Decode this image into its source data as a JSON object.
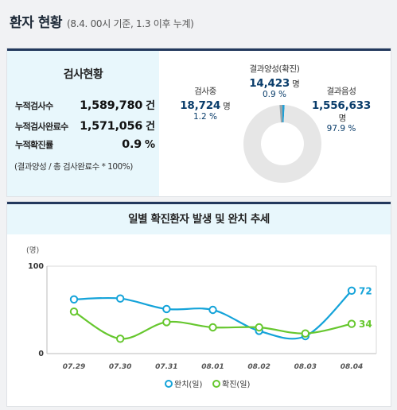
{
  "header": {
    "title": "환자 현황",
    "subtitle": "(8.4. 00시 기준, 1.3 이후 누계)"
  },
  "stats": {
    "title": "검사현황",
    "rows": [
      {
        "label": "누적검사수",
        "value": "1,589,780",
        "unit": "건"
      },
      {
        "label": "누적검사완료수",
        "value": "1,571,056",
        "unit": "건"
      },
      {
        "label": "누적확진률",
        "value": "0.9",
        "unit": "%"
      }
    ],
    "note": "(결과양성 / 총 검사완료수 * 100%)"
  },
  "donut": {
    "unit": "명",
    "colors": {
      "positive": "#1f9fd5",
      "testing": "#9aa6ac",
      "negative": "#e6e6e6"
    },
    "positive": {
      "label": "결과양성(확진)",
      "value": "14,423",
      "pct": "0.9 %",
      "share": 0.9
    },
    "testing": {
      "label": "검사중",
      "value": "18,724",
      "pct": "1.2 %",
      "share": 1.2
    },
    "negative": {
      "label": "결과음성",
      "value": "1,556,633",
      "pct": "97.9 %",
      "share": 97.9
    }
  },
  "chart_data": {
    "type": "line",
    "title": "일별 확진환자 발생 및 완치 추세",
    "ylabel": "(명)",
    "ylim": [
      0,
      100
    ],
    "yticks": [
      "0",
      "100"
    ],
    "categories": [
      "07.29",
      "07.30",
      "07.31",
      "08.01",
      "08.02",
      "08.03",
      "08.04"
    ],
    "series": [
      {
        "name": "완치(일)",
        "color": "#14a3d9",
        "values": [
          62,
          63,
          51,
          50,
          26,
          20,
          72
        ]
      },
      {
        "name": "확진(일)",
        "color": "#66c72e",
        "values": [
          48,
          17,
          36,
          30,
          30,
          23,
          34
        ]
      }
    ],
    "end_labels": [
      "72",
      "34"
    ],
    "legend": "bottom"
  }
}
